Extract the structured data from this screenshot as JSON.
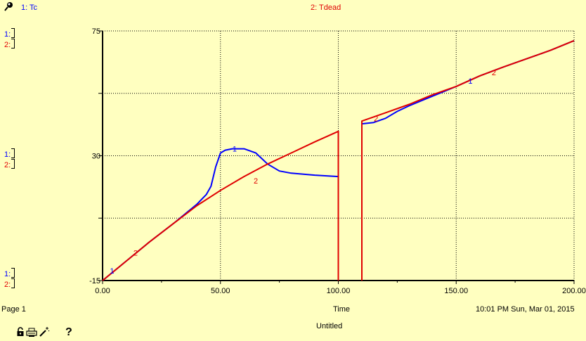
{
  "header": {
    "legend": [
      {
        "label": "1: Tc",
        "color": "#0000ff"
      },
      {
        "label": "2: Tdead",
        "color": "#e00000"
      }
    ]
  },
  "side_labels": {
    "one": "1:",
    "two": "2:"
  },
  "footer": {
    "page": "Page 1",
    "xlabel": "Time",
    "timestamp": "10:01 PM   Sun, Mar 01, 2015",
    "doc_title": "Untitled",
    "help": "?"
  },
  "icons": [
    "pin-icon",
    "lock-icon",
    "print-icon",
    "wand-icon",
    "help-icon"
  ],
  "chart_data": {
    "type": "line",
    "xlabel": "Time",
    "xlim": [
      0,
      200
    ],
    "ylim": [
      -15,
      75
    ],
    "xticks": [
      0,
      50,
      100,
      150,
      200
    ],
    "xtick_labels": [
      "0.00",
      "50.00",
      "100.00",
      "150.00",
      "200.00"
    ],
    "yticks": [
      -15,
      30,
      75
    ],
    "ytick_labels": [
      "-15",
      "30",
      "75"
    ],
    "grid": true,
    "series": [
      {
        "name": "Tc",
        "marker": "1",
        "color": "#0000ff",
        "x": [
          0,
          10,
          20,
          30,
          40,
          44,
          46,
          48,
          50,
          52,
          55,
          60,
          65,
          70,
          75,
          80,
          90,
          100,
          null,
          110,
          115,
          120,
          125,
          130,
          140,
          150,
          160,
          170,
          180,
          190,
          200
        ],
        "y": [
          -15,
          -8,
          -1,
          5.5,
          12.5,
          16,
          19,
          26,
          31,
          32,
          32.5,
          32.5,
          31,
          27,
          24.5,
          23.7,
          23,
          22.5,
          null,
          41.5,
          42,
          43.5,
          46,
          48,
          51.5,
          55,
          58.8,
          62,
          65,
          68,
          71.5
        ],
        "marker_positions": [
          {
            "x": 4,
            "y": -11.5
          },
          {
            "x": 56,
            "y": 32.5
          },
          {
            "x": 156,
            "y": 57
          }
        ]
      },
      {
        "name": "Tdead",
        "marker": "2",
        "color": "#e00000",
        "x": [
          0,
          10,
          20,
          30,
          40,
          50,
          60,
          70,
          80,
          90,
          100,
          100,
          100,
          null,
          110,
          110,
          120,
          130,
          140,
          150,
          160,
          170,
          180,
          190,
          200
        ],
        "y": [
          -15,
          -8,
          -1,
          5.5,
          12,
          17.5,
          22.5,
          27,
          31,
          35,
          38.8,
          38.8,
          -15,
          null,
          -15,
          42.5,
          45.5,
          48.5,
          52,
          55,
          58.8,
          62,
          65,
          68,
          71.5
        ],
        "marker_positions": [
          {
            "x": 14,
            "y": -5
          },
          {
            "x": 65,
            "y": 21
          },
          {
            "x": 116,
            "y": 43.5
          },
          {
            "x": 166,
            "y": 60
          }
        ]
      }
    ]
  }
}
